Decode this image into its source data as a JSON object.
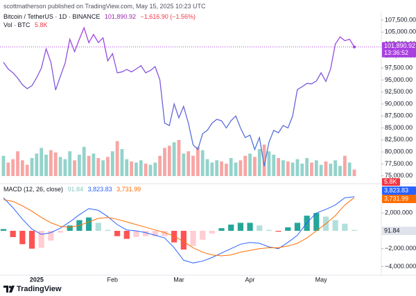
{
  "header": {
    "byline": "scottmatherson published on TradingView.com, May 15, 2025 10:23 UTC"
  },
  "footer": {
    "brand": "TradingView"
  },
  "chart_data": [
    {
      "type": "line",
      "title": "Bitcoin / TetherUS · 1D · BINANCE",
      "last_price": "101,890.92",
      "change": "−1,616.90 (−1.56%)",
      "countdown": "13:36:52",
      "colors": [
        "#a83fe0",
        "#3b7fd8"
      ],
      "categories": [
        null,
        null,
        null,
        null,
        null,
        null,
        null,
        "2025",
        null,
        null,
        null,
        null,
        null,
        null,
        null,
        null,
        null,
        null,
        null,
        null,
        null,
        null,
        null,
        "Feb",
        null,
        null,
        null,
        null,
        null,
        null,
        null,
        null,
        null,
        null,
        null,
        null,
        null,
        "Mar",
        null,
        null,
        null,
        null,
        null,
        null,
        null,
        null,
        null,
        null,
        null,
        null,
        null,
        null,
        "Apr",
        null,
        null,
        null,
        null,
        null,
        null,
        null,
        null,
        null,
        null,
        null,
        null,
        null,
        null,
        "May",
        null,
        null,
        null,
        null,
        null,
        null,
        null
      ],
      "values": [
        98700,
        97300,
        96500,
        95400,
        94000,
        93200,
        93800,
        95500,
        97500,
        101500,
        98700,
        92900,
        95800,
        98500,
        103500,
        100900,
        103500,
        105900,
        102800,
        104500,
        102800,
        103800,
        99000,
        100500,
        96500,
        96700,
        97200,
        96700,
        97300,
        98000,
        96500,
        97000,
        97800,
        95000,
        86000,
        85500,
        90000,
        87100,
        89500,
        86000,
        81500,
        80500,
        83800,
        84500,
        86000,
        86800,
        86500,
        85000,
        86500,
        87500,
        85000,
        83000,
        83500,
        80500,
        83000,
        77000,
        82000,
        84500,
        84000,
        85500,
        85000,
        87500,
        93000,
        93600,
        94300,
        94200,
        94800,
        96500,
        94700,
        97300,
        102500,
        104000,
        103200,
        103500,
        101890.92
      ],
      "volume": {
        "name": "Vol · BTC",
        "last_label": "5.8K",
        "up_color": "#93d3cb",
        "down_color": "#f7a6a4",
        "values": [
          18,
          12,
          15,
          22,
          14,
          10,
          16,
          20,
          25,
          19,
          23,
          21,
          17,
          15,
          22,
          14,
          19,
          26,
          18,
          20,
          16,
          14,
          17,
          22,
          31,
          24,
          15,
          13,
          12,
          14,
          11,
          10,
          12,
          18,
          25,
          27,
          30,
          32,
          20,
          22,
          18,
          26,
          23,
          15,
          12,
          14,
          13,
          11,
          16,
          12,
          14,
          18,
          20,
          17,
          24,
          28,
          22,
          19,
          16,
          14,
          13,
          12,
          15,
          11,
          16,
          12,
          14,
          10,
          13,
          11,
          14,
          9,
          18,
          12,
          5.8
        ]
      },
      "ylim": [
        73800,
        108800
      ],
      "yticks": [
        {
          "value": 75000,
          "label": "75,000.00"
        },
        {
          "value": 77500,
          "label": "77,500.00"
        },
        {
          "value": 80000,
          "label": "80,000.00"
        },
        {
          "value": 82500,
          "label": "82,500.00"
        },
        {
          "value": 85000,
          "label": "85,000.00"
        },
        {
          "value": 87500,
          "label": "87,500.00"
        },
        {
          "value": 90000,
          "label": "90,000.00"
        },
        {
          "value": 92500,
          "label": "92,500.00"
        },
        {
          "value": 95000,
          "label": "95,000.00"
        },
        {
          "value": 97500,
          "label": "97,500.00"
        },
        {
          "value": 100000,
          "label": "100,000.00"
        },
        {
          "value": 102500,
          "label": "102,500.00"
        },
        {
          "value": 105000,
          "label": "105,000.00"
        },
        {
          "value": 107500,
          "label": "107,500.00"
        }
      ]
    },
    {
      "type": "macd",
      "title": "MACD (12, 26, close)",
      "last_labels": [
        "91.84",
        "3,823.83",
        "3,731.99"
      ],
      "histogram": {
        "colors": [
          "#26a69a",
          "#b2dfdb",
          "#ffcdd2",
          "#ff5252"
        ],
        "values": [
          200,
          -700,
          -1500,
          -2000,
          -1900,
          -1100,
          -200,
          600,
          1200,
          1500,
          900,
          100,
          -600,
          -900,
          -700,
          -600,
          -600,
          -600,
          -1300,
          -2100,
          -1700,
          -1000,
          -300,
          300,
          700,
          900,
          900,
          600,
          100,
          -100,
          400,
          900,
          1700,
          2000,
          1600,
          1200,
          800,
          91.84
        ]
      },
      "macd": {
        "color": "#2962ff",
        "values": [
          3700,
          2600,
          1300,
          200,
          -400,
          -200,
          300,
          1000,
          1800,
          2500,
          2300,
          1600,
          700,
          100,
          0,
          -200,
          -500,
          -800,
          -1900,
          -3300,
          -3600,
          -3400,
          -3000,
          -2500,
          -2000,
          -1500,
          -1300,
          -1400,
          -1800,
          -2000,
          -1300,
          -500,
          900,
          2000,
          2400,
          2900,
          3700,
          3823.83
        ]
      },
      "signal": {
        "color": "#ff6d00",
        "values": [
          3500,
          3300,
          2800,
          2200,
          1500,
          900,
          500,
          400,
          600,
          1000,
          1400,
          1500,
          1300,
          1000,
          700,
          400,
          100,
          -200,
          -600,
          -1200,
          -1900,
          -2400,
          -2700,
          -2800,
          -2700,
          -2400,
          -2200,
          -2000,
          -1900,
          -1900,
          -1700,
          -1400,
          -800,
          0,
          800,
          1700,
          2900,
          3731.99
        ]
      },
      "ylim": [
        -4980,
        4900
      ],
      "yticks": [
        {
          "value": 2000,
          "label": "2,000.000"
        },
        {
          "value": -2000,
          "label": "−2,000.000"
        },
        {
          "value": -4000,
          "label": "−4,000.000"
        }
      ]
    }
  ]
}
